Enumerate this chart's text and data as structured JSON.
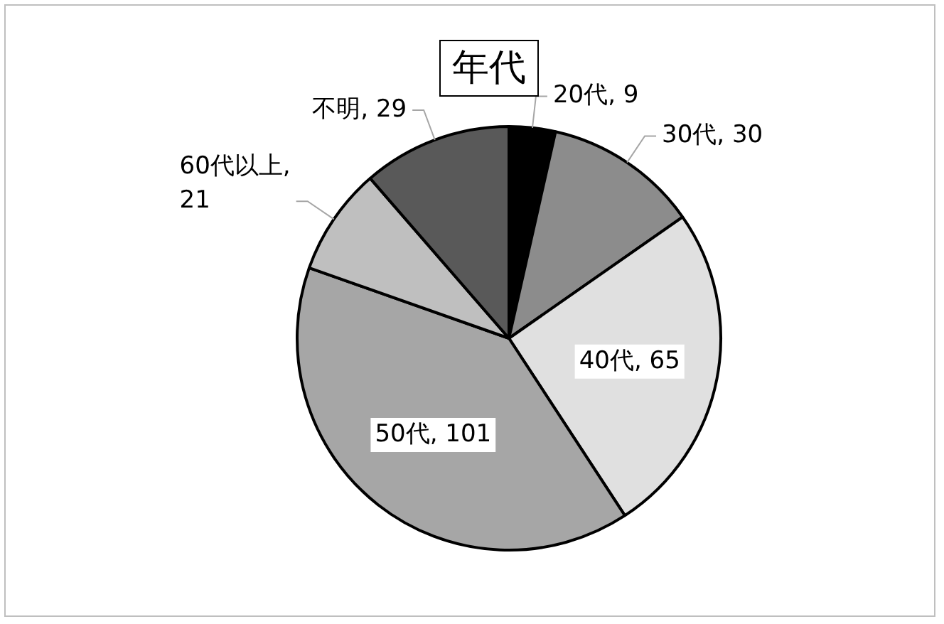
{
  "chart_data": {
    "type": "pie",
    "title": "年代",
    "categories": [
      "20代",
      "30代",
      "40代",
      "50代",
      "60代以上",
      "不明"
    ],
    "values": [
      9,
      30,
      65,
      101,
      21,
      29
    ],
    "colors": [
      "#000000",
      "#8c8c8c",
      "#e0e0e0",
      "#a6a6a6",
      "#bfbfbf",
      "#595959"
    ],
    "value_labels": [
      ", 9",
      ", 30",
      ", 65",
      ", 101",
      ", 21",
      ", 29"
    ],
    "legend": false
  }
}
